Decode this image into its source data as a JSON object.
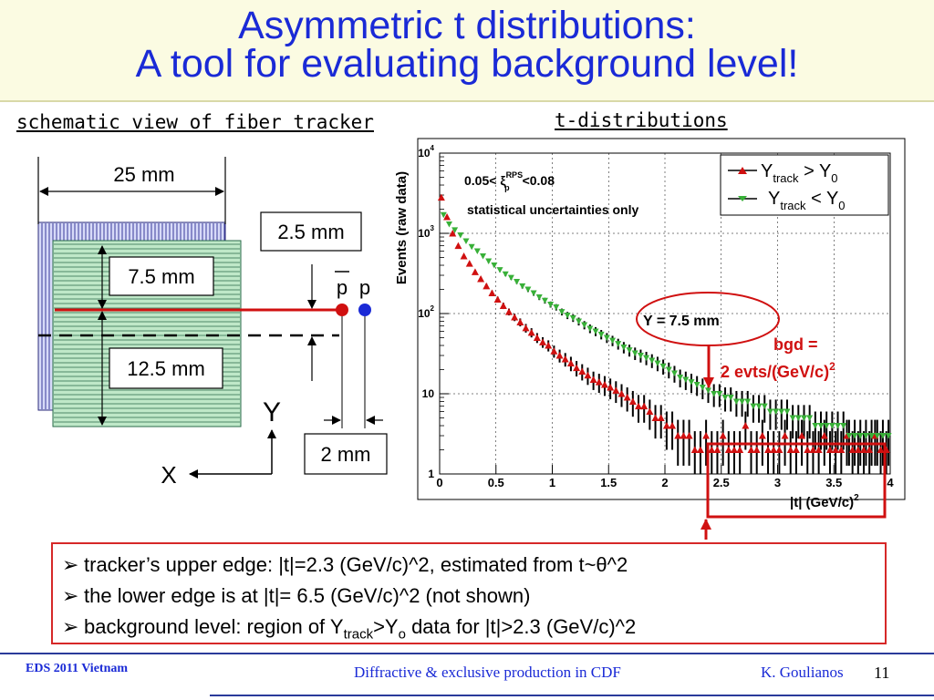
{
  "slide": {
    "title_line1": "Asymmetric t distributions:",
    "title_line2": "A tool for evaluating background level!",
    "left_caption": "schematic view of fiber tracker",
    "right_caption": "t-distributions"
  },
  "schematic": {
    "width_label": "25 mm",
    "gap_label": "2.5 mm",
    "upper_label": "7.5 mm",
    "lower_label": "12.5 mm",
    "pbar_label": "p",
    "p_label": "p",
    "y_axis_label": "Y",
    "x_axis_label": "X",
    "sep_label": "2 mm",
    "colors": {
      "fiber_fill": "#bfe8c8",
      "fiber_line": "#2a6a4a",
      "back_fill": "#d7daf8",
      "red": "#d01010",
      "blue": "#1a2ad6"
    }
  },
  "annotations": {
    "y_marker": "Y = 7.5 mm",
    "bgd_line1": "bgd =",
    "bgd_line2": "2 evts/(GeV/c)",
    "bgd_exp": "2"
  },
  "chart_data": {
    "type": "scatter",
    "log_y": true,
    "grid": true,
    "xlim": [
      0,
      4
    ],
    "ylim": [
      1,
      10000
    ],
    "x_ticks": [
      "0",
      "0.5",
      "1",
      "1.5",
      "2",
      "2.5",
      "3",
      "3.5",
      "4"
    ],
    "y_ticks": [
      "1",
      "10",
      "10^2",
      "10^3",
      "10^4"
    ],
    "ylabel": "Events (raw data)",
    "xlabel": "|t| (GeV/c)",
    "xlabel_exp": "2",
    "plot_text_1": "0.05< ξ",
    "plot_text_1_sup": "RPS",
    "plot_text_1_sub": "p",
    "plot_text_1_end": "<0.08",
    "plot_text_2": "statistical uncertainties only",
    "legend_position": "top-right",
    "series": [
      {
        "name": "Y track > Y 0",
        "legend_main": "Y",
        "legend_sub": "track",
        "legend_rel": " > Y",
        "legend_sub2": "0",
        "color": "#d01010",
        "marker": "triangle",
        "x": [
          0.025,
          0.075,
          0.125,
          0.175,
          0.225,
          0.275,
          0.325,
          0.375,
          0.425,
          0.475,
          0.525,
          0.575,
          0.625,
          0.675,
          0.725,
          0.775,
          0.825,
          0.875,
          0.925,
          0.975,
          1.025,
          1.075,
          1.125,
          1.175,
          1.225,
          1.275,
          1.325,
          1.375,
          1.425,
          1.475,
          1.525,
          1.575,
          1.625,
          1.675,
          1.725,
          1.775,
          1.825,
          1.875,
          1.925,
          1.975,
          2.025,
          2.075,
          2.125,
          2.175,
          2.225,
          2.275,
          2.325,
          2.375,
          2.425,
          2.475,
          2.525,
          2.575,
          2.625,
          2.675,
          2.725,
          2.775,
          2.825,
          2.875,
          2.925,
          2.975,
          3.025,
          3.075,
          3.125,
          3.175,
          3.225,
          3.275,
          3.325,
          3.375,
          3.425,
          3.475,
          3.525,
          3.575,
          3.625,
          3.675,
          3.725,
          3.775,
          3.825,
          3.875,
          3.925,
          3.975
        ],
        "y": [
          2800,
          1600,
          1000,
          700,
          520,
          420,
          330,
          270,
          220,
          180,
          150,
          125,
          105,
          90,
          78,
          66,
          58,
          50,
          44,
          40,
          34,
          30,
          27,
          24,
          21,
          19,
          17,
          15,
          14,
          13,
          12,
          11,
          10,
          9,
          8,
          7,
          7,
          6,
          5,
          5,
          4,
          4,
          3,
          3,
          3,
          2,
          2,
          3,
          2,
          2,
          3,
          2,
          2,
          2,
          4,
          2,
          2,
          3,
          2,
          2,
          2,
          3,
          2,
          2,
          3,
          2,
          2,
          2,
          3,
          2,
          2,
          2,
          3,
          2,
          2,
          2,
          2,
          3,
          2,
          2
        ]
      },
      {
        "name": "Y track < Y 0",
        "legend_main": "Y",
        "legend_sub": "track",
        "legend_rel": " < Y",
        "legend_sub2": "0",
        "color": "#38b038",
        "marker": "triangle-down",
        "x": [
          0.025,
          0.075,
          0.125,
          0.175,
          0.225,
          0.275,
          0.325,
          0.375,
          0.425,
          0.475,
          0.525,
          0.575,
          0.625,
          0.675,
          0.725,
          0.775,
          0.825,
          0.875,
          0.925,
          0.975,
          1.025,
          1.075,
          1.125,
          1.175,
          1.225,
          1.275,
          1.325,
          1.375,
          1.425,
          1.475,
          1.525,
          1.575,
          1.625,
          1.675,
          1.725,
          1.775,
          1.825,
          1.875,
          1.925,
          1.975,
          2.025,
          2.075,
          2.125,
          2.175,
          2.225,
          2.275,
          2.325,
          2.375,
          2.425,
          2.475,
          2.525,
          2.575,
          2.625,
          2.675,
          2.725,
          2.775,
          2.825,
          2.875,
          2.925,
          2.975,
          3.025,
          3.075,
          3.125,
          3.175,
          3.225,
          3.275,
          3.325,
          3.375,
          3.425,
          3.475,
          3.525,
          3.575,
          3.625,
          3.675,
          3.725,
          3.775,
          3.825,
          3.875,
          3.925,
          3.975
        ],
        "y": [
          1700,
          1300,
          1100,
          950,
          800,
          680,
          600,
          520,
          450,
          400,
          350,
          310,
          280,
          250,
          220,
          200,
          180,
          160,
          145,
          130,
          120,
          105,
          95,
          88,
          80,
          72,
          65,
          60,
          55,
          50,
          46,
          42,
          38,
          35,
          32,
          30,
          28,
          26,
          24,
          22,
          20,
          18,
          16,
          15,
          14,
          13,
          12,
          11,
          10,
          10,
          9,
          9,
          8,
          8,
          8,
          7,
          7,
          7,
          6,
          6,
          6,
          6,
          5,
          5,
          5,
          5,
          4,
          4,
          4,
          4,
          4,
          4,
          3,
          3,
          3,
          3,
          3,
          3,
          3,
          3
        ]
      }
    ]
  },
  "bullets": [
    {
      "text": "tracker’s upper edge: |t|=2.3 (GeV/c)^2, estimated from t~θ^2"
    },
    {
      "text": "the lower edge is at |t|= 6.5 (GeV/c)^2 (not shown)"
    },
    {
      "pre": "background level: region of Y",
      "sub1": "track",
      "mid": ">Y",
      "sub2": "o",
      "post": " data for |t|>2.3 (GeV/c)^2"
    }
  ],
  "bullet_glyph": "➢",
  "footer": {
    "left": "EDS 2011 Vietnam",
    "center": "Diffractive & exclusive production in CDF",
    "author": "K. Goulianos",
    "page": "11"
  }
}
